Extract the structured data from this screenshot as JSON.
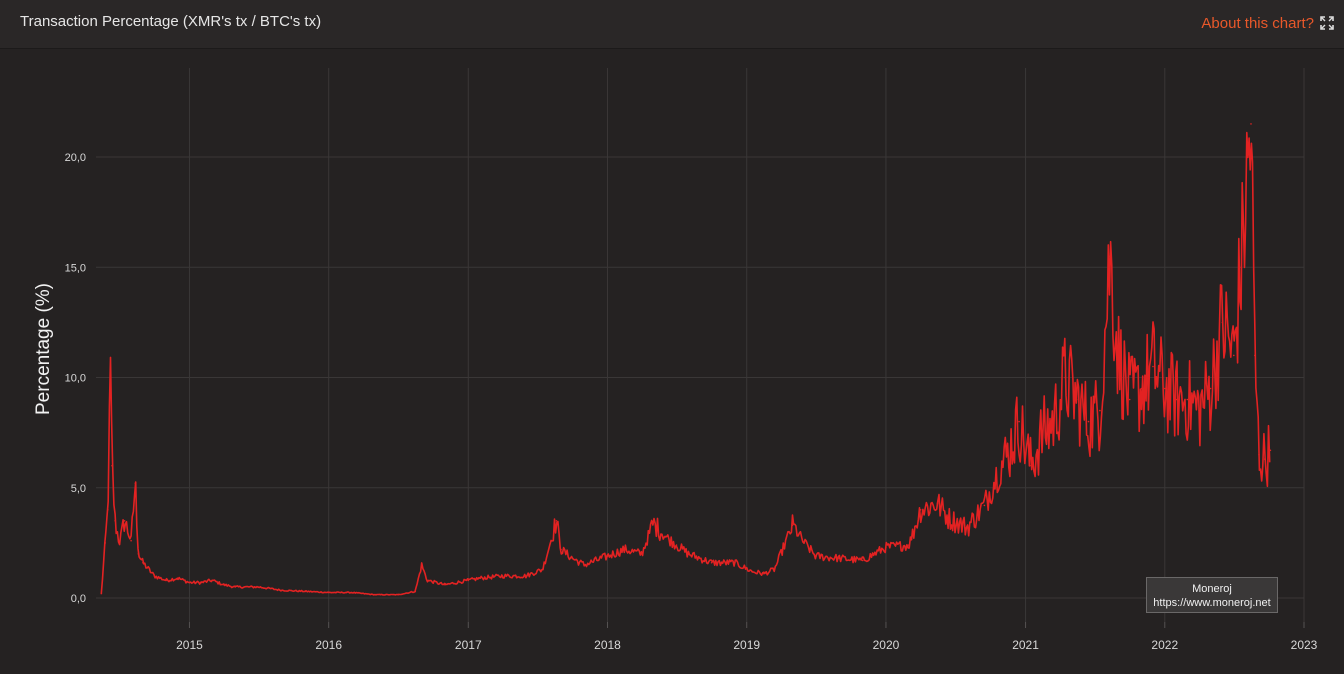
{
  "header": {
    "title": "Transaction Percentage (XMR's tx / BTC's tx)",
    "about_label": "About this chart?"
  },
  "icons": {
    "expand": "expand-icon"
  },
  "watermark": {
    "name": "Moneroj",
    "url": "https://www.moneroj.net"
  },
  "colors": {
    "background": "#252222",
    "series": "#e32222",
    "accent": "#e9582a",
    "grid": "#3a3737",
    "text": "#e6e6e6"
  },
  "chart_data": {
    "type": "line",
    "title": "Transaction Percentage (XMR's tx / BTC's tx)",
    "xlabel": "",
    "ylabel": "Percentage (%)",
    "x_ticks": [
      "2015",
      "2016",
      "2017",
      "2018",
      "2019",
      "2020",
      "2021",
      "2022",
      "2023"
    ],
    "y_ticks": [
      "0,0",
      "5,0",
      "10,0",
      "15,0",
      "20,0"
    ],
    "xlim": [
      "2014-05-01",
      "2023-01-01"
    ],
    "ylim": [
      0,
      25
    ],
    "grid": true,
    "legend": "none",
    "series": [
      {
        "points": [
          [
            "2014-05-15",
            0.2
          ],
          [
            "2014-05-25",
            2.5
          ],
          [
            "2014-06-01",
            4.0
          ],
          [
            "2014-06-08",
            10.0
          ],
          [
            "2014-06-12",
            6.0
          ],
          [
            "2014-06-20",
            3.5
          ],
          [
            "2014-07-01",
            2.5
          ],
          [
            "2014-07-15",
            3.5
          ],
          [
            "2014-08-01",
            2.6
          ],
          [
            "2014-08-12",
            5.2
          ],
          [
            "2014-08-20",
            2.0
          ],
          [
            "2014-09-01",
            1.6
          ],
          [
            "2014-10-01",
            1.0
          ],
          [
            "2014-11-01",
            0.8
          ],
          [
            "2014-12-01",
            0.9
          ],
          [
            "2015-01-01",
            0.7
          ],
          [
            "2015-02-01",
            0.7
          ],
          [
            "2015-03-01",
            0.8
          ],
          [
            "2015-04-01",
            0.6
          ],
          [
            "2015-05-01",
            0.5
          ],
          [
            "2015-07-01",
            0.5
          ],
          [
            "2015-09-01",
            0.35
          ],
          [
            "2015-11-01",
            0.3
          ],
          [
            "2016-01-01",
            0.25
          ],
          [
            "2016-03-01",
            0.25
          ],
          [
            "2016-05-01",
            0.15
          ],
          [
            "2016-07-01",
            0.15
          ],
          [
            "2016-08-15",
            0.3
          ],
          [
            "2016-09-01",
            1.5
          ],
          [
            "2016-09-15",
            0.8
          ],
          [
            "2016-11-01",
            0.6
          ],
          [
            "2017-01-01",
            0.8
          ],
          [
            "2017-02-01",
            0.9
          ],
          [
            "2017-04-01",
            1.0
          ],
          [
            "2017-06-01",
            1.0
          ],
          [
            "2017-07-15",
            1.3
          ],
          [
            "2017-08-20",
            3.5
          ],
          [
            "2017-09-01",
            2.2
          ],
          [
            "2017-10-01",
            1.8
          ],
          [
            "2017-11-01",
            1.5
          ],
          [
            "2018-01-01",
            1.9
          ],
          [
            "2018-02-15",
            2.2
          ],
          [
            "2018-04-01",
            2.0
          ],
          [
            "2018-05-01",
            3.4
          ],
          [
            "2018-06-01",
            2.8
          ],
          [
            "2018-07-01",
            2.4
          ],
          [
            "2018-08-01",
            2.0
          ],
          [
            "2018-10-01",
            1.6
          ],
          [
            "2018-12-01",
            1.6
          ],
          [
            "2019-01-15",
            1.2
          ],
          [
            "2019-02-15",
            1.1
          ],
          [
            "2019-03-15",
            1.3
          ],
          [
            "2019-05-01",
            3.3
          ],
          [
            "2019-06-01",
            2.5
          ],
          [
            "2019-07-01",
            1.9
          ],
          [
            "2019-09-01",
            1.8
          ],
          [
            "2019-11-01",
            1.7
          ],
          [
            "2020-01-01",
            2.3
          ],
          [
            "2020-03-01",
            2.4
          ],
          [
            "2020-04-01",
            4.0
          ],
          [
            "2020-05-15",
            4.3
          ],
          [
            "2020-06-15",
            3.6
          ],
          [
            "2020-08-01",
            3.2
          ],
          [
            "2020-09-15",
            4.2
          ],
          [
            "2020-10-15",
            5.5
          ],
          [
            "2020-11-15",
            6.5
          ],
          [
            "2020-12-15",
            8.0
          ],
          [
            "2021-01-15",
            6.0
          ],
          [
            "2021-02-15",
            7.5
          ],
          [
            "2021-03-15",
            8.0
          ],
          [
            "2021-04-15",
            10.0
          ],
          [
            "2021-05-15",
            9.0
          ],
          [
            "2021-06-15",
            8.0
          ],
          [
            "2021-07-15",
            8.5
          ],
          [
            "2021-08-10",
            15.5
          ],
          [
            "2021-09-01",
            11.0
          ],
          [
            "2021-10-01",
            9.0
          ],
          [
            "2021-11-01",
            9.5
          ],
          [
            "2021-12-01",
            10.5
          ],
          [
            "2022-01-01",
            9.5
          ],
          [
            "2022-02-01",
            9.0
          ],
          [
            "2022-03-01",
            9.0
          ],
          [
            "2022-04-01",
            8.5
          ],
          [
            "2022-05-01",
            9.5
          ],
          [
            "2022-06-01",
            12.5
          ],
          [
            "2022-07-01",
            11.0
          ],
          [
            "2022-07-20",
            15.0
          ],
          [
            "2022-08-15",
            21.5
          ],
          [
            "2022-08-25",
            11.0
          ],
          [
            "2022-09-05",
            6.5
          ],
          [
            "2022-09-20",
            6.3
          ],
          [
            "2022-10-05",
            6.7
          ]
        ]
      }
    ]
  }
}
